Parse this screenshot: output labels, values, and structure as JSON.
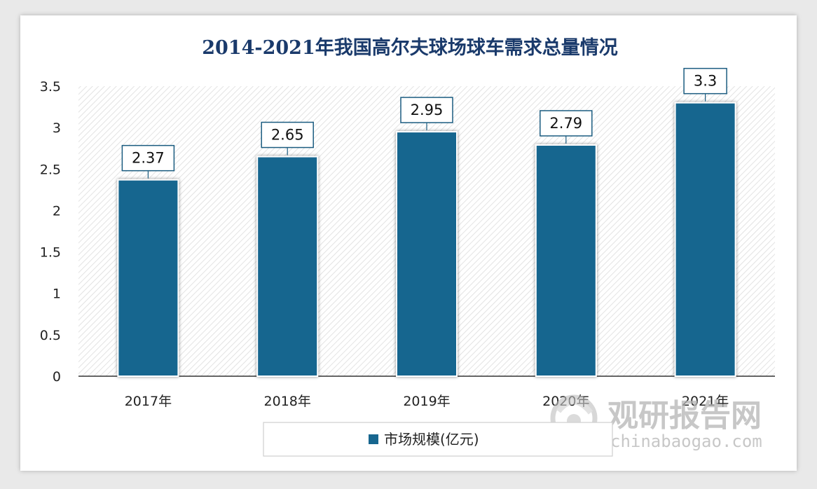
{
  "chart_data": {
    "type": "bar",
    "title": "2014-2021年我国高尔夫球场球车需求总量情况",
    "categories": [
      "2017年",
      "2018年",
      "2019年",
      "2020年",
      "2021年"
    ],
    "series": [
      {
        "name": "市场规模(亿元)",
        "values": [
          2.37,
          2.65,
          2.95,
          2.79,
          3.3
        ]
      }
    ],
    "data_labels": [
      "2.37",
      "2.65",
      "2.95",
      "2.79",
      "3.3"
    ],
    "ylim": [
      0,
      3.5
    ],
    "yticks": [
      0,
      0.5,
      1,
      1.5,
      2,
      2.5,
      3,
      3.5
    ],
    "ytick_labels": [
      "0",
      "0.5",
      "1",
      "1.5",
      "2",
      "2.5",
      "3",
      "3.5"
    ],
    "xlabel": "",
    "ylabel": "",
    "grid": false,
    "legend": "bottom",
    "colors": {
      "bar": "#17668f",
      "label_border": "#1b5c80",
      "title": "#1a3a6b"
    }
  },
  "watermark": {
    "cn": "观研报告网",
    "en": "chinabaogao.com",
    "logo": "watermark-logo-icon"
  }
}
